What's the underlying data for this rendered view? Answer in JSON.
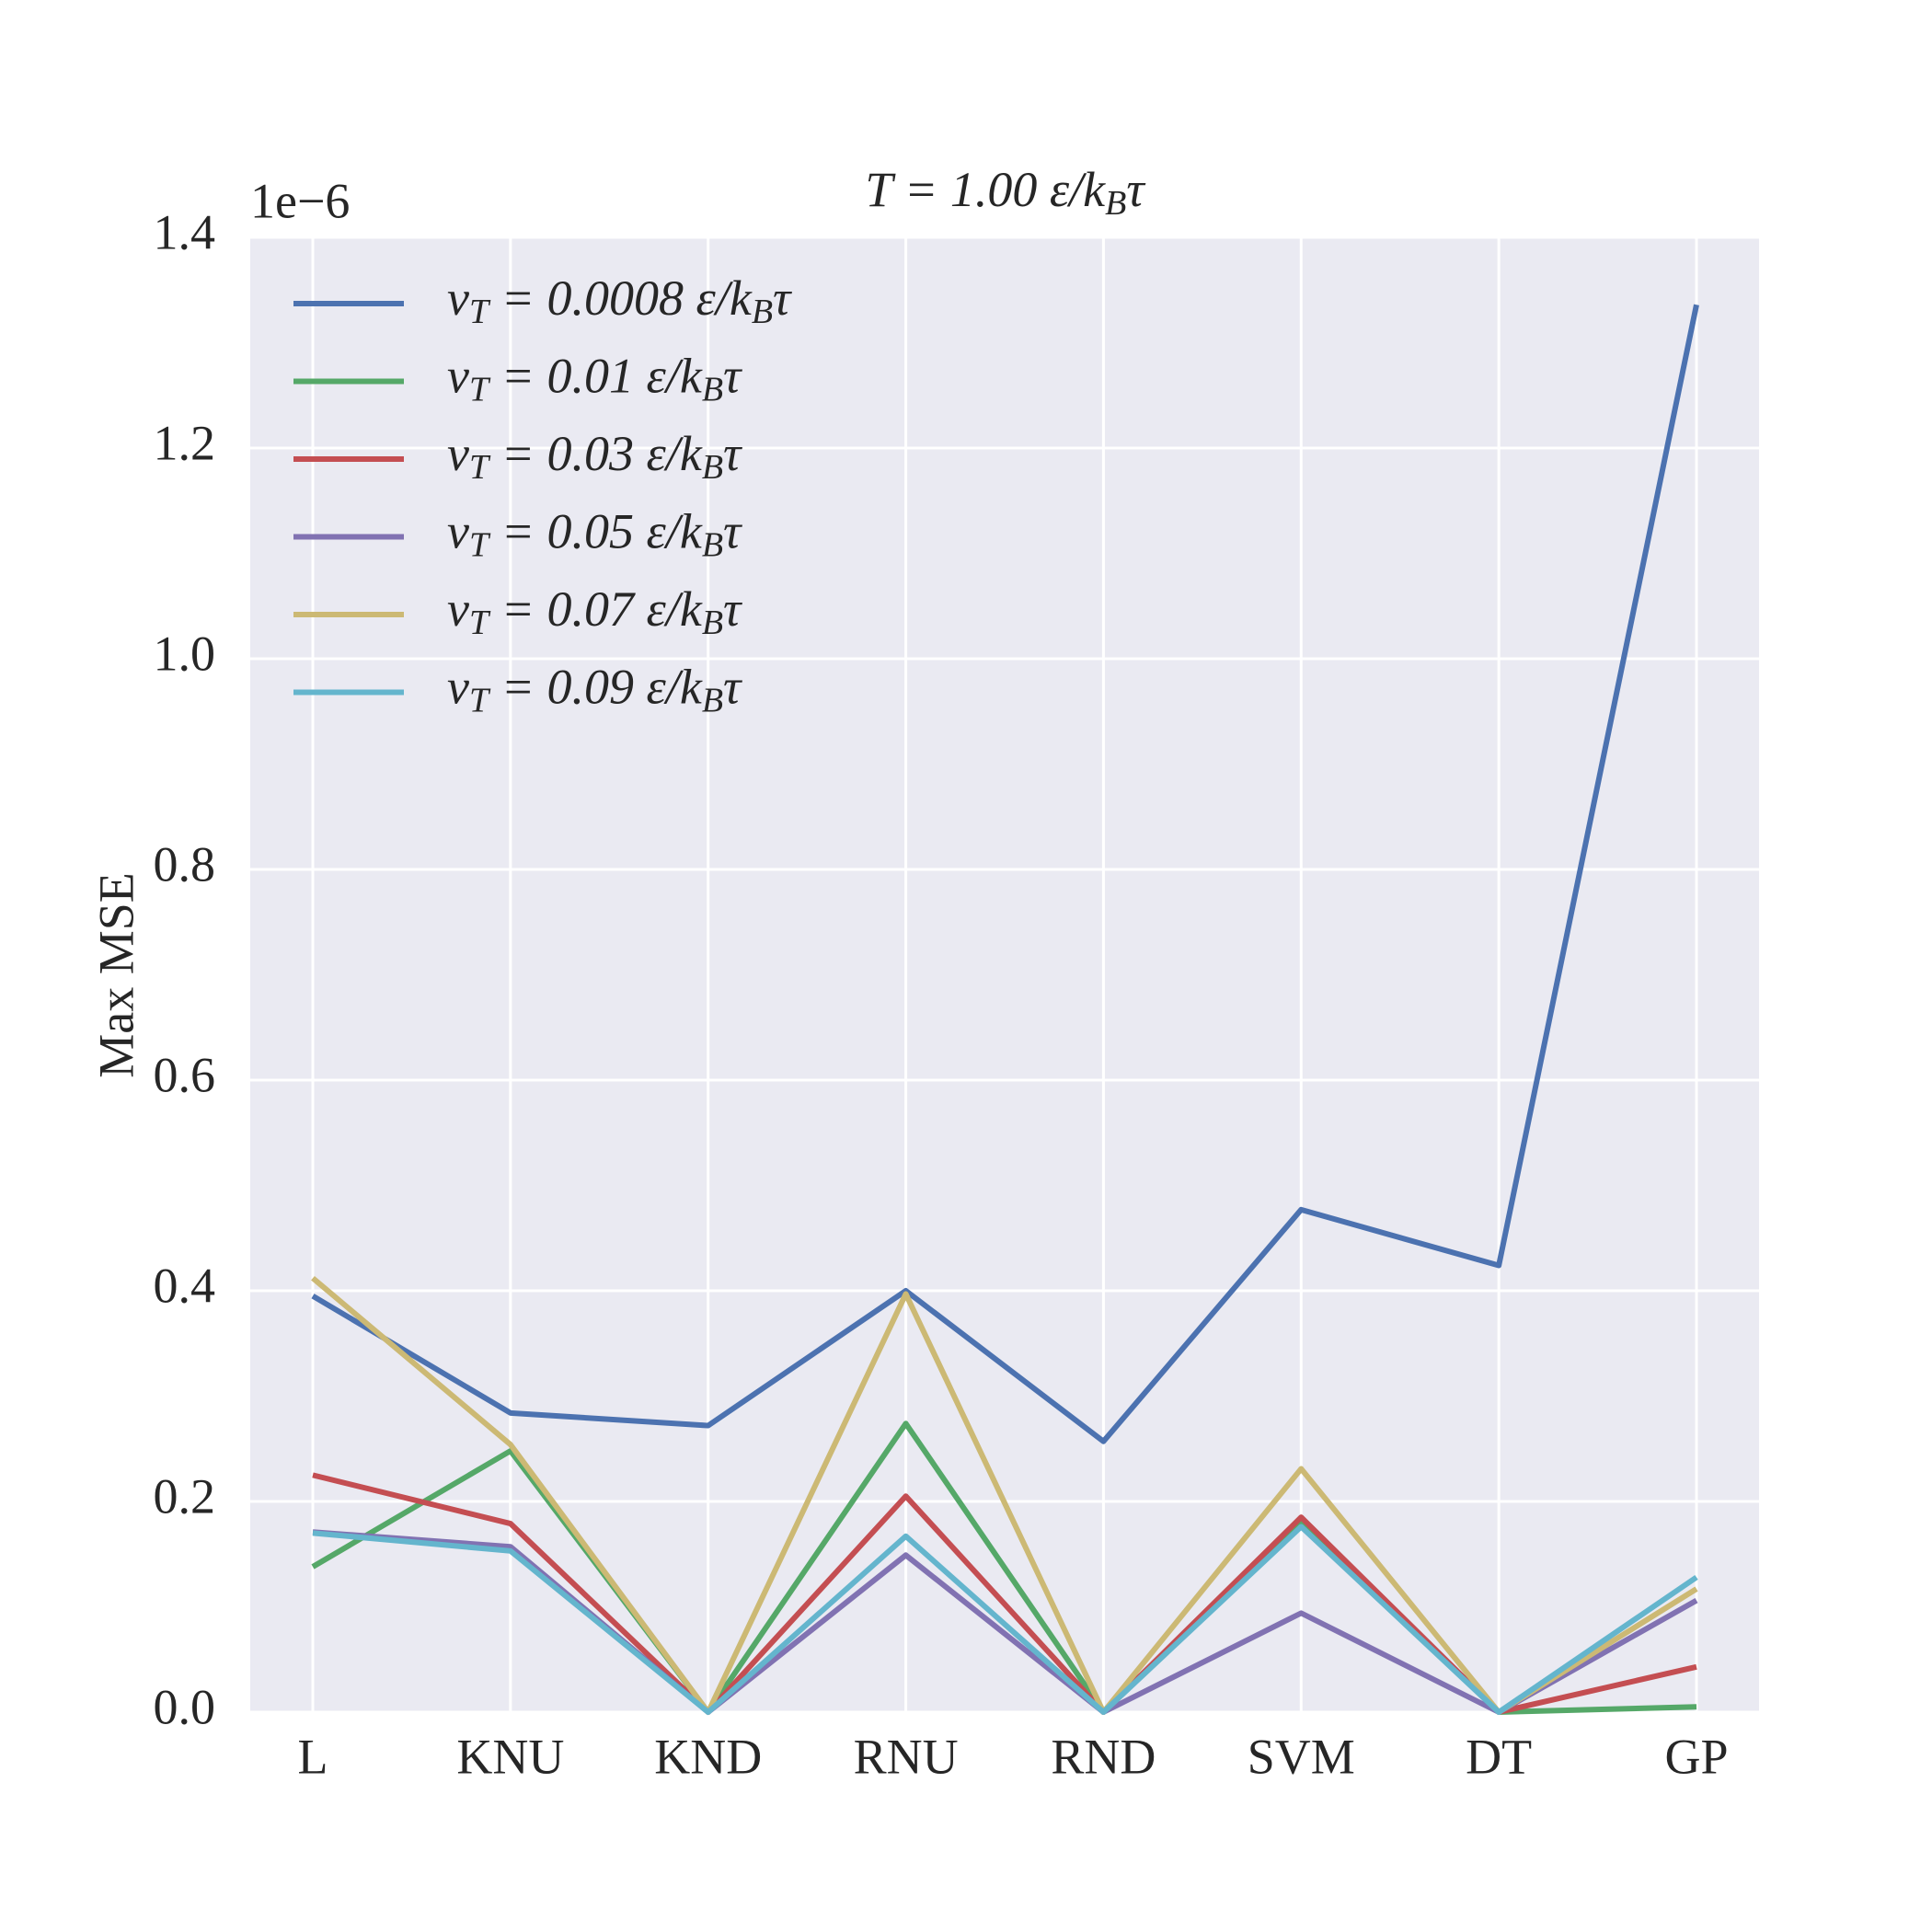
{
  "chart_data": {
    "type": "line",
    "title": "T = 1.00 ε/kBτ",
    "y_label": "Max MSE",
    "y_offset_label": "1e−6",
    "categories": [
      "L",
      "KNU",
      "KND",
      "RNU",
      "RND",
      "SVM",
      "DT",
      "GP"
    ],
    "ylim": [
      0,
      1.4
    ],
    "yticks": [
      {
        "value": 0,
        "label": "0.0"
      },
      0.2,
      0.4,
      0.6,
      0.8,
      {
        "value": 1,
        "label": "1.0"
      },
      1.2,
      1.4
    ],
    "grid": true,
    "legend": "upper left",
    "series": [
      {
        "name": "vT = 0.0008 ε/kBτ",
        "color": "#4c72b0",
        "values": [
          0.395,
          0.284,
          0.272,
          0.4,
          0.257,
          0.477,
          0.424,
          1.336
        ]
      },
      {
        "name": "vT = 0.01 ε/kBτ",
        "color": "#55a868",
        "values": [
          0.138,
          0.248,
          0,
          0.274,
          0,
          0.18,
          0,
          0.005
        ]
      },
      {
        "name": "vT = 0.03 ε/kBτ",
        "color": "#c44e52",
        "values": [
          0.225,
          0.179,
          0,
          0.205,
          0,
          0.185,
          0,
          0.043
        ]
      },
      {
        "name": "vT = 0.05 ε/kBτ",
        "color": "#8172b2",
        "values": [
          0.171,
          0.157,
          0,
          0.149,
          0,
          0.094,
          0,
          0.106
        ]
      },
      {
        "name": "vT = 0.07 ε/kBτ",
        "color": "#ccb974",
        "values": [
          0.412,
          0.254,
          0,
          0.397,
          0,
          0.231,
          0,
          0.117
        ]
      },
      {
        "name": "vT = 0.09 ε/kBτ",
        "color": "#64b5cd",
        "values": [
          0.17,
          0.153,
          0,
          0.167,
          0,
          0.176,
          0,
          0.128
        ]
      }
    ]
  }
}
